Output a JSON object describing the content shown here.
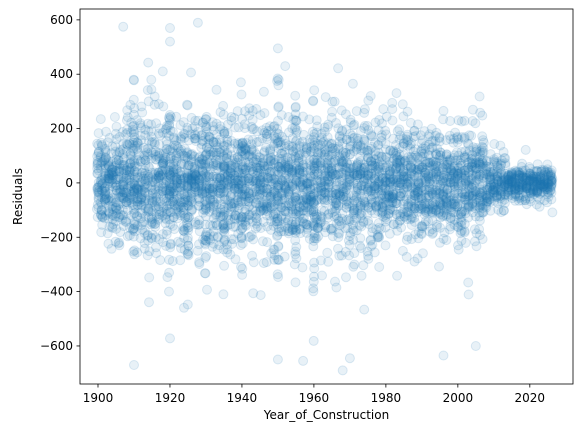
{
  "chart_data": {
    "type": "scatter",
    "title": "",
    "xlabel": "Year_of_Construction",
    "ylabel": "Residuals",
    "xlim": [
      1895,
      2032
    ],
    "ylim": [
      -740,
      640
    ],
    "x_ticks": [
      1900,
      1920,
      1940,
      1960,
      1980,
      2000,
      2020
    ],
    "y_ticks": [
      600,
      400,
      200,
      0,
      -200,
      -400,
      -600
    ],
    "x_tick_labels": [
      "1900",
      "1920",
      "1940",
      "1960",
      "1980",
      "2000",
      "2020"
    ],
    "y_tick_labels": [
      "600",
      "400",
      "200",
      "0",
      "−200",
      "−400",
      "−600"
    ],
    "grid": false,
    "marker": "circle",
    "marker_color": "#1f77b4",
    "marker_alpha": 0.1,
    "x_range_of_data": [
      1900,
      2026
    ],
    "notable_points": [
      {
        "x": 1907,
        "y": 575
      },
      {
        "x": 1920,
        "y": 570
      },
      {
        "x": 1920,
        "y": 520
      },
      {
        "x": 1950,
        "y": 495
      },
      {
        "x": 1910,
        "y": -670
      },
      {
        "x": 1968,
        "y": -690
      },
      {
        "x": 1970,
        "y": -645
      },
      {
        "x": 1950,
        "y": -650
      },
      {
        "x": 1957,
        "y": -655
      },
      {
        "x": 1996,
        "y": -635
      },
      {
        "x": 2005,
        "y": -600
      }
    ]
  }
}
